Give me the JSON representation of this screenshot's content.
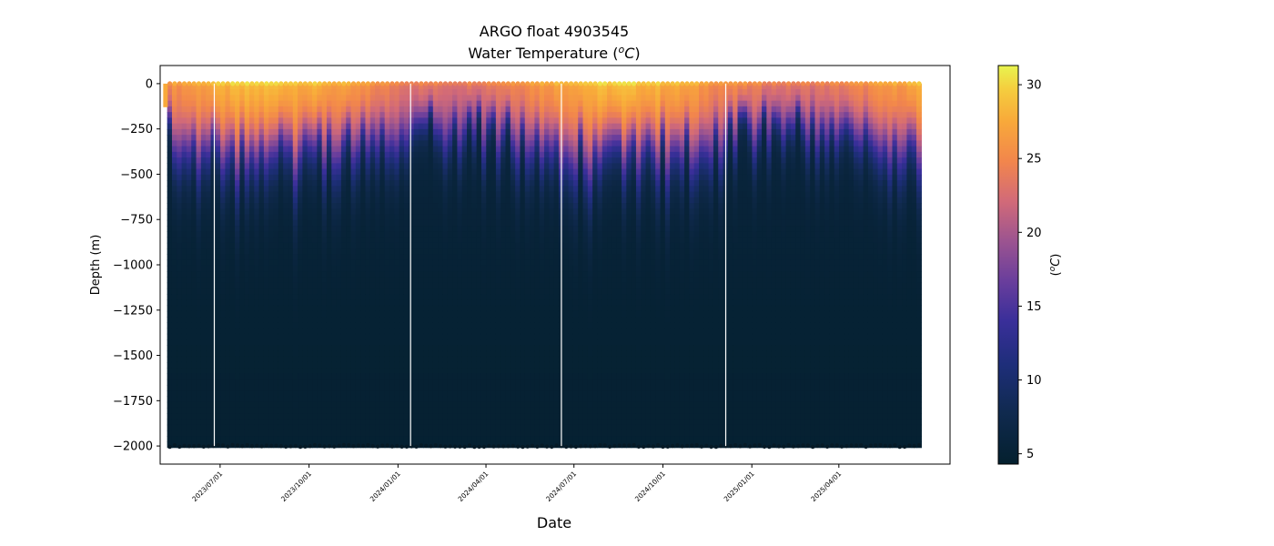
{
  "chart_data": {
    "type": "heatmap",
    "title": "ARGO float 4903545",
    "subtitle_prefix": "Water Temperature (",
    "subtitle_unit_base": "o",
    "subtitle_unit_letter": "C",
    "subtitle_suffix": ")",
    "xlabel": "Date",
    "ylabel": "Depth (m)",
    "ylim": [
      -2100,
      100
    ],
    "yticks": [
      0,
      -250,
      -500,
      -750,
      -1000,
      -1250,
      -1500,
      -1750,
      -2000
    ],
    "ytick_labels": [
      "0",
      "−250",
      "−500",
      "−750",
      "−1000",
      "−1250",
      "−1500",
      "−1750",
      "−2000"
    ],
    "xticks": [
      "2023/07/01",
      "2023/10/01",
      "2024/01/01",
      "2024/04/01",
      "2024/07/01",
      "2024/10/01",
      "2025/01/01",
      "2025/04/01"
    ],
    "xlim_dates": [
      "2023-04-30",
      "2025-07-25"
    ],
    "profile_start": "2023-05-10",
    "profile_end": "2025-06-25",
    "profile_interval_days": 5,
    "max_depth": -2000,
    "data_gaps": [
      "2023-06-25",
      "2024-01-14",
      "2024-06-18",
      "2024-12-05"
    ],
    "colorbar": {
      "label_prefix": "(",
      "label_base": "o",
      "label_letter": "C",
      "label_suffix": ")",
      "vmin": 4.3,
      "vmax": 31.3,
      "ticks": [
        5,
        10,
        15,
        20,
        25,
        30
      ],
      "tick_labels": [
        "5",
        "10",
        "15",
        "20",
        "25",
        "30"
      ],
      "colormap": [
        [
          0.0,
          "#04202e"
        ],
        [
          0.13,
          "#102a4f"
        ],
        [
          0.25,
          "#1e2e7a"
        ],
        [
          0.36,
          "#3a2f9a"
        ],
        [
          0.46,
          "#6a3e9c"
        ],
        [
          0.56,
          "#9c5490"
        ],
        [
          0.66,
          "#d26a78"
        ],
        [
          0.76,
          "#f2864c"
        ],
        [
          0.86,
          "#f8a93a"
        ],
        [
          0.94,
          "#f5cd3e"
        ],
        [
          1.0,
          "#e8f44f"
        ]
      ]
    }
  }
}
